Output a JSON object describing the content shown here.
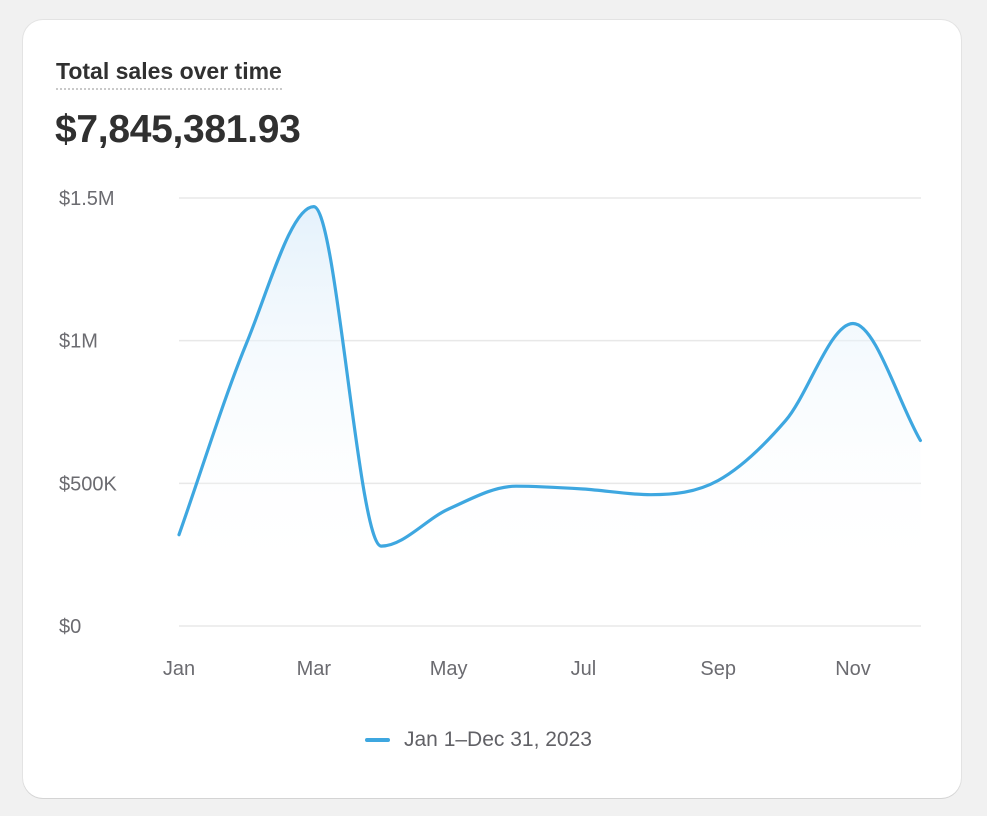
{
  "card": {
    "title": "Total sales over time",
    "total_value": "$7,845,381.93"
  },
  "colors": {
    "line": "#3ea7e0",
    "fill": "#e9f4fc",
    "grid": "#e8e8e8",
    "axis_text": "#6b6b70"
  },
  "chart_data": {
    "type": "area",
    "title": "Total sales over time",
    "xlabel": "",
    "ylabel": "",
    "x_tick_labels": [
      "Jan",
      "Mar",
      "May",
      "Jul",
      "Sep",
      "Nov"
    ],
    "y_tick_labels": [
      "$0",
      "$500K",
      "$1M",
      "$1.5M"
    ],
    "ylim": [
      0,
      1500000
    ],
    "grid": true,
    "legend_position": "bottom-center",
    "series": [
      {
        "name": "Jan 1–Dec 31, 2023",
        "x": [
          "2023-01",
          "2023-02",
          "2023-03",
          "2023-04",
          "2023-05",
          "2023-06",
          "2023-07",
          "2023-08",
          "2023-09",
          "2023-10",
          "2023-11",
          "2023-12"
        ],
        "values": [
          320000,
          990000,
          1470000,
          280000,
          410000,
          490000,
          480000,
          460000,
          510000,
          720000,
          1060000,
          650000
        ]
      }
    ]
  }
}
